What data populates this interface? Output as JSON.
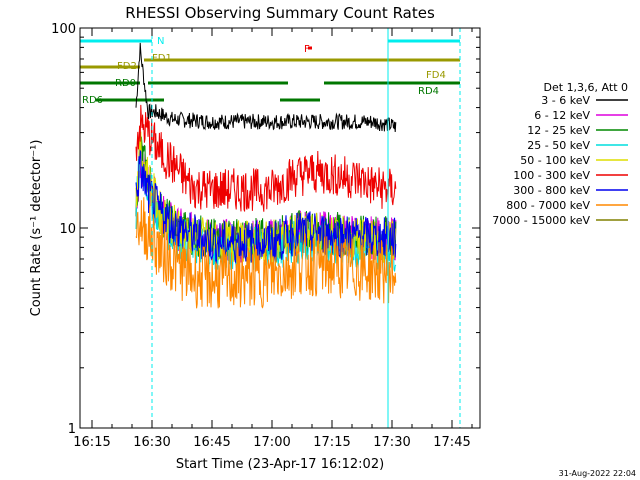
{
  "chart_data": {
    "type": "line",
    "title": "RHESSI Observing Summary Count Rates",
    "xlabel": "Start Time (23-Apr-17 16:12:02)",
    "ylabel": "Count Rate (s⁻¹ detector⁻¹)",
    "y_scale": "log",
    "ylim": [
      1,
      100
    ],
    "xlim": [
      "16:12",
      "17:52"
    ],
    "x_ticks": [
      "16:15",
      "16:30",
      "16:45",
      "17:00",
      "17:15",
      "17:30",
      "17:45"
    ],
    "y_ticks": [
      "1",
      "10",
      "100"
    ],
    "legend_header": "Det 1,3,6, Att 0",
    "legend_position": "right",
    "footer_date": "31-Aug-2022 22:04",
    "data_start": "16:26",
    "data_end": "17:31",
    "series": [
      {
        "name": "3 - 6 keV",
        "color": "#000000",
        "points": [
          [
            "16:26",
            40
          ],
          [
            "16:27",
            80
          ],
          [
            "16:29",
            38
          ],
          [
            "16:31",
            38
          ],
          [
            "16:35",
            35
          ],
          [
            "16:45",
            34
          ],
          [
            "17:00",
            34
          ],
          [
            "17:15",
            34
          ],
          [
            "17:25",
            34
          ],
          [
            "17:29",
            33
          ],
          [
            "17:31",
            32
          ]
        ]
      },
      {
        "name": "6 - 12 keV",
        "color": "#dd00dd",
        "points": [
          [
            "16:26",
            11
          ],
          [
            "16:27",
            22
          ],
          [
            "16:29",
            17
          ],
          [
            "16:32",
            12
          ],
          [
            "16:36",
            10
          ],
          [
            "16:45",
            8.6
          ],
          [
            "17:00",
            8.7
          ],
          [
            "17:07",
            9.6
          ],
          [
            "17:15",
            9.4
          ],
          [
            "17:22",
            9.0
          ],
          [
            "17:30",
            8.8
          ],
          [
            "17:31",
            8.8
          ]
        ]
      },
      {
        "name": "12 - 25 keV",
        "color": "#008800",
        "points": [
          [
            "16:26",
            13
          ],
          [
            "16:27",
            25
          ],
          [
            "16:29",
            18
          ],
          [
            "16:32",
            12
          ],
          [
            "16:36",
            10
          ],
          [
            "16:45",
            8.7
          ],
          [
            "17:00",
            8.8
          ],
          [
            "17:07",
            9.6
          ],
          [
            "17:15",
            9.5
          ],
          [
            "17:22",
            9.0
          ],
          [
            "17:30",
            8.9
          ],
          [
            "17:31",
            8.9
          ]
        ]
      },
      {
        "name": "25 - 50 keV",
        "color": "#00dddd",
        "points": [
          [
            "16:26",
            12
          ],
          [
            "16:27",
            22
          ],
          [
            "16:29",
            16
          ],
          [
            "16:32",
            11
          ],
          [
            "16:36",
            9
          ],
          [
            "16:45",
            7.8
          ],
          [
            "17:00",
            7.9
          ],
          [
            "17:07",
            8.6
          ],
          [
            "17:15",
            8.5
          ],
          [
            "17:22",
            8.0
          ],
          [
            "17:30",
            7.8
          ],
          [
            "17:31",
            7.8
          ]
        ]
      },
      {
        "name": "50 - 100 keV",
        "color": "#dddd00",
        "points": [
          [
            "16:26",
            14
          ],
          [
            "16:27",
            25
          ],
          [
            "16:29",
            18
          ],
          [
            "16:32",
            12
          ],
          [
            "16:36",
            10
          ],
          [
            "16:45",
            8.5
          ],
          [
            "17:00",
            8.5
          ],
          [
            "17:07",
            9.3
          ],
          [
            "17:15",
            9.2
          ],
          [
            "17:22",
            8.7
          ],
          [
            "17:30",
            8.5
          ],
          [
            "17:31",
            8.5
          ]
        ]
      },
      {
        "name": "100 - 300 keV",
        "color": "#ee0000",
        "points": [
          [
            "16:26",
            26
          ],
          [
            "16:27",
            33
          ],
          [
            "16:29",
            30
          ],
          [
            "16:32",
            24
          ],
          [
            "16:36",
            20
          ],
          [
            "16:40",
            16
          ],
          [
            "16:45",
            15.5
          ],
          [
            "17:00",
            15.5
          ],
          [
            "17:05",
            18
          ],
          [
            "17:10",
            19
          ],
          [
            "17:15",
            18.5
          ],
          [
            "17:22",
            17.5
          ],
          [
            "17:26",
            16
          ],
          [
            "17:30",
            15.5
          ],
          [
            "17:31",
            15.5
          ]
        ]
      },
      {
        "name": "300 - 800 keV",
        "color": "#0000ee",
        "points": [
          [
            "16:26",
            15
          ],
          [
            "16:27",
            20
          ],
          [
            "16:29",
            15
          ],
          [
            "16:32",
            12
          ],
          [
            "16:36",
            10
          ],
          [
            "16:45",
            8.5
          ],
          [
            "17:00",
            8.5
          ],
          [
            "17:07",
            9.5
          ],
          [
            "17:15",
            9.3
          ],
          [
            "17:22",
            9.0
          ],
          [
            "17:30",
            8.8
          ],
          [
            "17:31",
            8.8
          ]
        ]
      },
      {
        "name": "800 - 7000 keV",
        "color": "#ff8800",
        "points": [
          [
            "16:26",
            10
          ],
          [
            "16:27",
            11
          ],
          [
            "16:29",
            9.5
          ],
          [
            "16:32",
            7.8
          ],
          [
            "16:36",
            6.5
          ],
          [
            "16:40",
            5.8
          ],
          [
            "16:45",
            5.5
          ],
          [
            "17:00",
            5.8
          ],
          [
            "17:07",
            6.6
          ],
          [
            "17:15",
            6.4
          ],
          [
            "17:22",
            6.2
          ],
          [
            "17:30",
            6.0
          ],
          [
            "17:31",
            6.0
          ]
        ]
      },
      {
        "name": "7000 - 15000 keV",
        "color": "#808000",
        "points": []
      }
    ],
    "flags": [
      {
        "name": "N",
        "color": "#00eeee",
        "segments": [
          [
            "16:12",
            "16:30"
          ],
          [
            "17:29",
            "17:47"
          ]
        ]
      },
      {
        "name": "F",
        "color": "#ee0000",
        "segments": [
          [
            "17:09",
            "17:10"
          ]
        ]
      },
      {
        "name": "FD1",
        "color": "#999900",
        "segments": [
          [
            "16:28",
            "17:47"
          ]
        ]
      },
      {
        "name": "FD2",
        "color": "#999900",
        "segments": [
          [
            "16:12",
            "16:27"
          ]
        ]
      },
      {
        "name": "FD4",
        "color": "#999900",
        "segments": []
      },
      {
        "name": "RD0",
        "color": "#007700",
        "segments": [
          [
            "16:12",
            "16:27"
          ],
          [
            "16:29",
            "17:04"
          ],
          [
            "17:13",
            "17:47"
          ]
        ]
      },
      {
        "name": "RD4",
        "color": "#007700",
        "segments": []
      },
      {
        "name": "RD6",
        "color": "#007700",
        "segments": [
          [
            "16:16",
            "16:33"
          ],
          [
            "17:02",
            "17:12"
          ]
        ]
      }
    ],
    "vertical_lines": [
      {
        "time": "16:12",
        "color": "#00eeee",
        "style": "solid"
      },
      {
        "time": "16:30",
        "color": "#00eeee",
        "style": "dashed"
      },
      {
        "time": "17:29",
        "color": "#00eeee",
        "style": "solid"
      },
      {
        "time": "17:47",
        "color": "#00eeee",
        "style": "dashed"
      }
    ]
  }
}
